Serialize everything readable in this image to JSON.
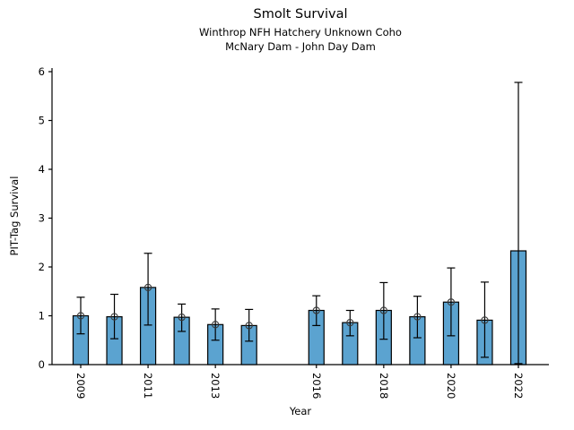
{
  "figure": {
    "title": "Smolt Survival",
    "subtitle1": "Winthrop NFH Hatchery Unknown Coho",
    "subtitle2": "McNary Dam - John Day Dam"
  },
  "chart_data": {
    "type": "bar",
    "title": "Smolt Survival",
    "subtitle1": "Winthrop NFH Hatchery Unknown Coho",
    "subtitle2": "McNary Dam - John Day Dam",
    "xlabel": "Year",
    "ylabel": "PIT-Tag Survival",
    "ylim": [
      0,
      6
    ],
    "yticks": [
      0,
      1,
      2,
      3,
      4,
      5,
      6
    ],
    "x_year_range": [
      2009,
      2022
    ],
    "xticks_labeled": [
      2009,
      2011,
      2013,
      2016,
      2018,
      2020,
      2022
    ],
    "grid": false,
    "legend": "none",
    "bar_color": "#5BA3D0",
    "bar_edge_color": "#000000",
    "error_bar_color": "#000000",
    "marker_edge_color": "#3a3a3a",
    "points": [
      {
        "year": 2009,
        "value": 1.0,
        "ci_low": 0.63,
        "ci_high": 1.38,
        "marker": true
      },
      {
        "year": 2010,
        "value": 0.98,
        "ci_low": 0.53,
        "ci_high": 1.44,
        "marker": true
      },
      {
        "year": 2011,
        "value": 1.58,
        "ci_low": 0.81,
        "ci_high": 2.28,
        "marker": true
      },
      {
        "year": 2012,
        "value": 0.97,
        "ci_low": 0.68,
        "ci_high": 1.24,
        "marker": true
      },
      {
        "year": 2013,
        "value": 0.82,
        "ci_low": 0.5,
        "ci_high": 1.14,
        "marker": true
      },
      {
        "year": 2014,
        "value": 0.8,
        "ci_low": 0.48,
        "ci_high": 1.13,
        "marker": true
      },
      {
        "year": 2016,
        "value": 1.11,
        "ci_low": 0.8,
        "ci_high": 1.41,
        "marker": true
      },
      {
        "year": 2017,
        "value": 0.86,
        "ci_low": 0.59,
        "ci_high": 1.11,
        "marker": true
      },
      {
        "year": 2018,
        "value": 1.11,
        "ci_low": 0.52,
        "ci_high": 1.68,
        "marker": true
      },
      {
        "year": 2019,
        "value": 0.98,
        "ci_low": 0.55,
        "ci_high": 1.4,
        "marker": true
      },
      {
        "year": 2020,
        "value": 1.28,
        "ci_low": 0.59,
        "ci_high": 1.98,
        "marker": true
      },
      {
        "year": 2021,
        "value": 0.91,
        "ci_low": 0.15,
        "ci_high": 1.69,
        "marker": true
      },
      {
        "year": 2022,
        "value": 2.33,
        "ci_low": 0.02,
        "ci_high": 5.78,
        "marker": false
      }
    ]
  }
}
